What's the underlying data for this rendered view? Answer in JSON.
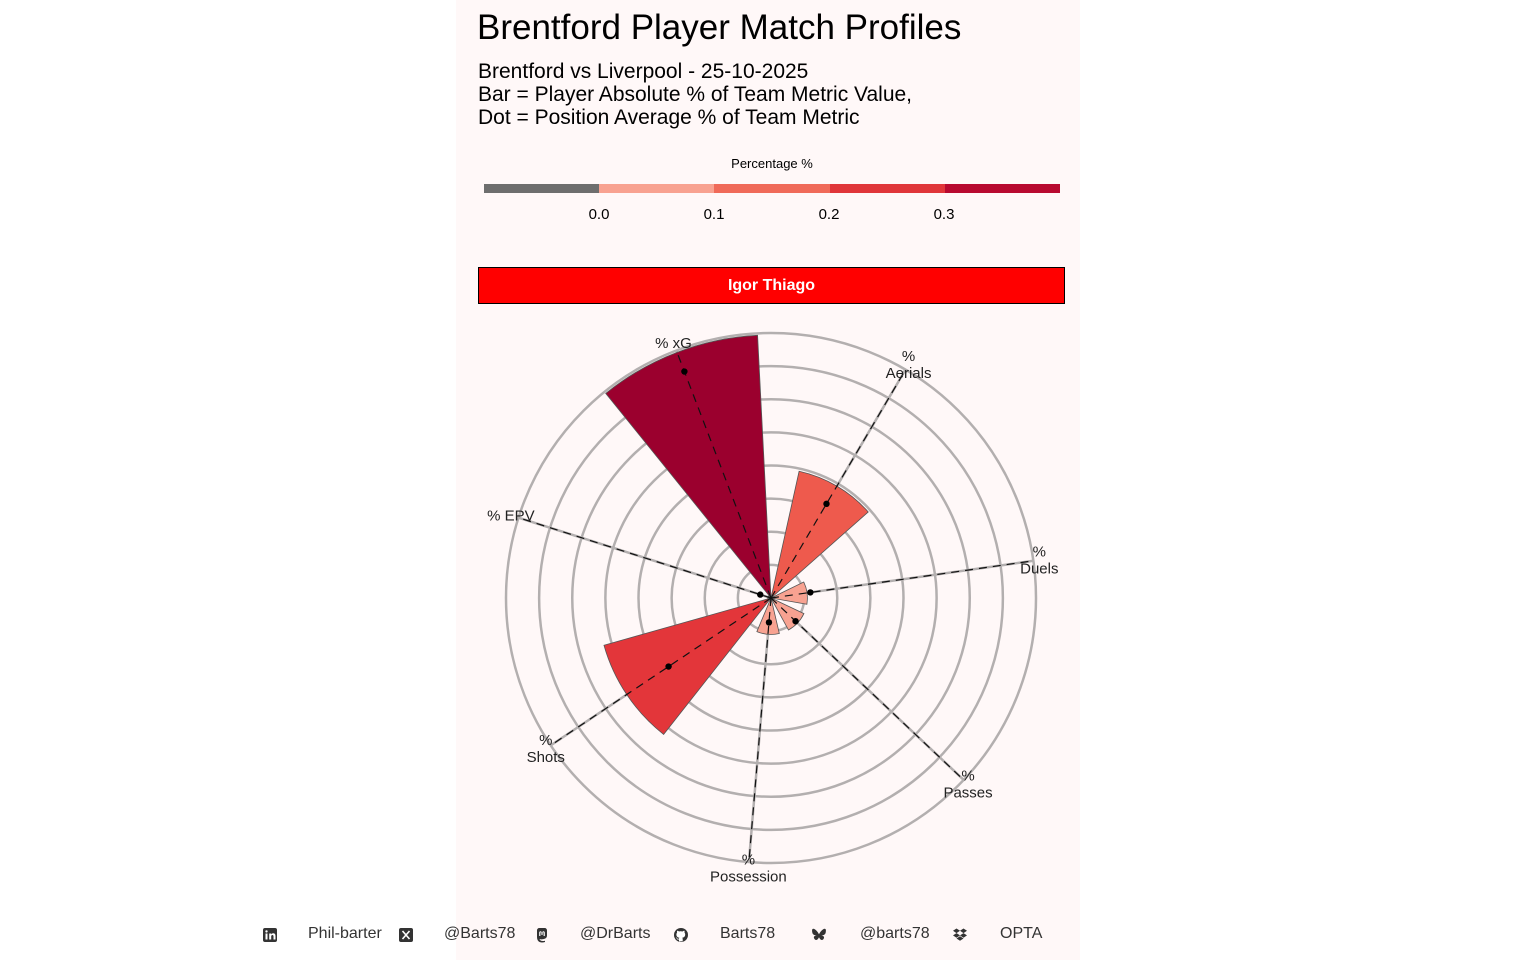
{
  "header": {
    "title": "Brentford Player Match Profiles",
    "subtitle_lines": [
      "Brentford vs Liverpool - 25-10-2025",
      "Bar = Player Absolute % of Team Metric Value,",
      "Dot = Position Average % of Team Metric"
    ]
  },
  "legend": {
    "title": "Percentage %",
    "colors": [
      "#6e6e6e",
      "#f8a291",
      "#f06a59",
      "#e0363a",
      "#b80a30"
    ],
    "ticks": [
      "0.0",
      "0.1",
      "0.2",
      "0.3"
    ]
  },
  "player": {
    "name": "Igor Thiago",
    "strip_color": "#ff0000"
  },
  "chart_data": {
    "type": "polar-bar",
    "rmax": 0.4,
    "grid_rings": [
      0.05,
      0.1,
      0.15,
      0.2,
      0.25,
      0.3,
      0.35,
      0.4
    ],
    "categories": [
      {
        "key": "aerials",
        "label_lines": [
          "%",
          "Aerials"
        ]
      },
      {
        "key": "duels",
        "label_lines": [
          "%",
          "Duels"
        ]
      },
      {
        "key": "passes",
        "label_lines": [
          "%",
          "Passes"
        ]
      },
      {
        "key": "possession",
        "label_lines": [
          "%",
          "Possession"
        ]
      },
      {
        "key": "shots",
        "label_lines": [
          "%",
          "Shots"
        ]
      },
      {
        "key": "epv",
        "label_lines": [
          "% EPV"
        ]
      },
      {
        "key": "xg",
        "label_lines": [
          "% xG"
        ]
      }
    ],
    "series": [
      {
        "name": "Player",
        "values": [
          0.196,
          0.055,
          0.055,
          0.055,
          0.262,
          0.005,
          0.397
        ],
        "colors": [
          "#ee5a4d",
          "#f8a291",
          "#f8a291",
          "#f8a291",
          "#e3363a",
          "#f8a291",
          "#9b002e"
        ]
      },
      {
        "name": "Position Average",
        "values": [
          0.165,
          0.06,
          0.051,
          0.037,
          0.186,
          0.017,
          0.366
        ]
      }
    ]
  },
  "footer": [
    {
      "icon": "linkedin-icon",
      "text": "Phil-barter"
    },
    {
      "icon": "x-icon",
      "text": "@Barts78"
    },
    {
      "icon": "mastodon-icon",
      "text": "@DrBarts"
    },
    {
      "icon": "github-icon",
      "text": "Barts78"
    },
    {
      "icon": "bluesky-icon",
      "text": "@barts78"
    },
    {
      "icon": "dropbox-icon",
      "text": "OPTA"
    }
  ]
}
